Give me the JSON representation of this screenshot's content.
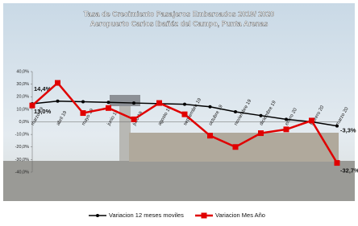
{
  "chart_data": {
    "type": "line",
    "title": "Tasa de Crecimiento Pasajeros Embarcados 2019/ 2020",
    "subtitle": "Aeropuerto Carlos Ibañéz del Campo, Punta Arenas",
    "categories": [
      "marzo 19",
      "abril 19",
      "mayo 19",
      "junio 19",
      "julio 19",
      "agosto 19",
      "septiembre 19",
      "octubre 19",
      "noviembre 19",
      "diciembre 19",
      "enero 20",
      "febrero 20",
      "marzo 20"
    ],
    "series": [
      {
        "name": "Variacion 12 meses moviles",
        "color": "#000000",
        "values": [
          14.4,
          16.5,
          16,
          15.5,
          15,
          14.5,
          14,
          12,
          8,
          5,
          2,
          0,
          -3.3
        ],
        "value_labels": [
          "14,4%",
          null,
          null,
          null,
          null,
          null,
          null,
          null,
          null,
          null,
          null,
          null,
          "-3,3%"
        ]
      },
      {
        "name": "Variacion Mes Año",
        "color": "#e00000",
        "values": [
          13.0,
          31,
          7,
          11,
          2,
          15,
          6,
          -11,
          -20,
          -9,
          -6,
          1,
          -32.7
        ],
        "value_labels": [
          "13,0%",
          null,
          null,
          null,
          null,
          null,
          null,
          null,
          null,
          null,
          null,
          null,
          "-32,7%"
        ]
      }
    ],
    "ylim": [
      -40,
      40
    ],
    "yticks": [
      {
        "value": 40,
        "label": "40,0%"
      },
      {
        "value": 30,
        "label": "30,0%"
      },
      {
        "value": 20,
        "label": "20,0%"
      },
      {
        "value": 10,
        "label": "10,0%"
      },
      {
        "value": 0,
        "label": "0,0%"
      },
      {
        "value": -10,
        "label": "-10,0%"
      },
      {
        "value": -20,
        "label": "-20,0%"
      },
      {
        "value": -30,
        "label": "-30,0%"
      },
      {
        "value": -40,
        "label": "-40,0%"
      }
    ]
  }
}
